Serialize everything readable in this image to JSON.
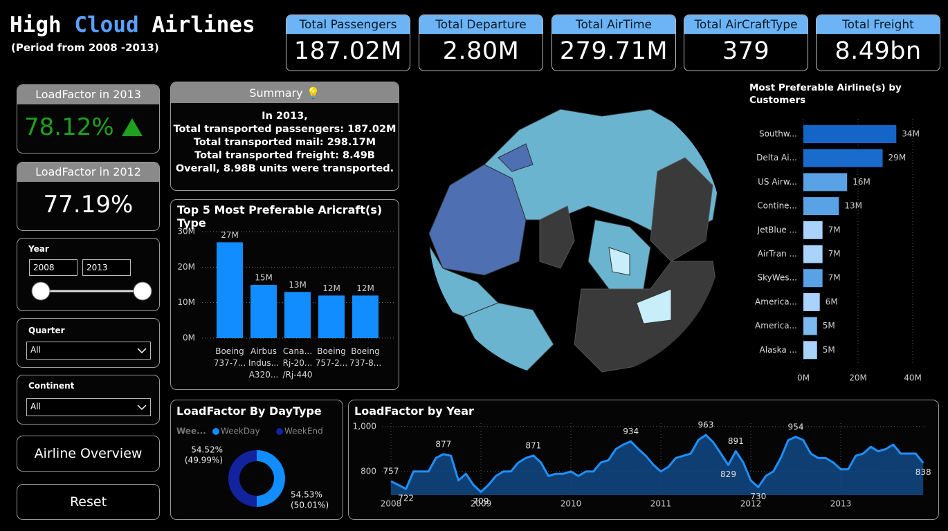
{
  "header": {
    "title_parts": [
      "High",
      "Cloud",
      "Airlines"
    ],
    "subtitle": "(Period from 2008 -2013)"
  },
  "kpis": [
    {
      "label": "Total Passengers",
      "value": "187.02M"
    },
    {
      "label": "Total Departure",
      "value": "2.80M"
    },
    {
      "label": "Total AirTime",
      "value": "279.71M"
    },
    {
      "label": "Total AirCraftType",
      "value": "379"
    },
    {
      "label": "Total Freight",
      "value": "8.49bn"
    }
  ],
  "load_factor_cards": [
    {
      "title": "LoadFactor in 2013",
      "value": "78.12%"
    },
    {
      "title": "LoadFactor in 2012",
      "value": "77.19%"
    }
  ],
  "summary": {
    "title": "Summary 💡",
    "lines": [
      "In 2013,",
      "Total transported passengers: 187.02M",
      "Total transported mail: 298.17M",
      "Total transported freight: 8.49B",
      "Overall, 8.98B units were transported."
    ]
  },
  "filters": {
    "year": {
      "label": "Year",
      "from": "2008",
      "to": "2013"
    },
    "quarter": {
      "label": "Quarter",
      "value": "All"
    },
    "continent": {
      "label": "Continent",
      "value": "All"
    }
  },
  "buttons": [
    "Airline Overview",
    "Reset"
  ],
  "chart_data": [
    {
      "type": "bar",
      "title": "Top 5 Most Preferable Aricraft(s) Type",
      "categories": [
        "Boeing\n737-7...",
        "Airbus\nIndus...\nA320...",
        "Cana...\nRj-20...\n/Rj-440",
        "Boeing\n757-2...",
        "Boeing\n737-8..."
      ],
      "values": [
        27000000,
        15000000,
        13000000,
        12000000,
        12000000
      ],
      "value_labels": [
        "27M",
        "15M",
        "13M",
        "12M",
        "12M"
      ],
      "color": "#118dff",
      "ylim": [
        0,
        30000000
      ],
      "yticks": [
        {
          "value": 0,
          "label": "0M"
        },
        {
          "value": 10000000,
          "label": "10M"
        },
        {
          "value": 20000000,
          "label": "20M"
        },
        {
          "value": 30000000,
          "label": "30M"
        }
      ],
      "grid": true
    },
    {
      "type": "hbar",
      "title": "Most Preferable Airline(s) by Customers",
      "categories": [
        "Southw...",
        "Delta Ai...",
        "US Airw...",
        "Contine...",
        "JetBlue ...",
        "AirTran ...",
        "SkyWes...",
        "America...",
        "America...",
        "Alaska ..."
      ],
      "values": [
        34000000,
        29000000,
        16000000,
        13000000,
        7000000,
        7000000,
        7000000,
        6000000,
        5000000,
        5000000
      ],
      "value_labels": [
        "34M",
        "29M",
        "16M",
        "13M",
        "7M",
        "7M",
        "7M",
        "6M",
        "5M",
        "5M"
      ],
      "colors": [
        "#1565c8",
        "#1a6ccc",
        "#5aa2e6",
        "#5aa2e6",
        "#a9d3fb",
        "#a9d3fb",
        "#5aa2e6",
        "#a9d3fb",
        "#7db8f0",
        "#a9d3fb"
      ],
      "xlim": [
        0,
        40000000
      ],
      "xticks": [
        {
          "value": 0,
          "label": "0M"
        },
        {
          "value": 20000000,
          "label": "20M"
        },
        {
          "value": 40000000,
          "label": "40M"
        }
      ],
      "grid": true
    },
    {
      "type": "donut",
      "title": "LoadFactor By DayType",
      "legend_title": "Wee...",
      "categories": [
        "WeekDay",
        "WeekEnd"
      ],
      "values": [
        50.01,
        49.99
      ],
      "value_labels": [
        "(50.01%)",
        "(49.99%)"
      ],
      "loadfactor_labels": [
        "54.53%",
        "54.52%"
      ],
      "colors": [
        "#118dff",
        "#12239e"
      ]
    },
    {
      "type": "line",
      "title": "LoadFactor by Year",
      "categories": [
        "2008",
        null,
        null,
        null,
        null,
        null,
        null,
        null,
        null,
        null,
        null,
        null,
        "2009",
        null,
        null,
        null,
        null,
        null,
        null,
        null,
        null,
        null,
        null,
        null,
        "2010",
        null,
        null,
        null,
        null,
        null,
        null,
        null,
        null,
        null,
        null,
        null,
        "2011",
        null,
        null,
        null,
        null,
        null,
        null,
        null,
        null,
        null,
        null,
        null,
        "2012",
        null,
        null,
        null,
        null,
        null,
        null,
        null,
        null,
        null,
        null,
        null,
        "2013",
        null,
        null,
        null,
        null,
        null,
        null,
        null,
        null,
        null,
        null,
        null
      ],
      "series": [
        {
          "name": "LoadFactor",
          "color": "#1e90ff",
          "values": [
            757,
            740,
            722,
            800,
            800,
            800,
            860,
            877,
            870,
            760,
            790,
            740,
            709,
            740,
            780,
            800,
            800,
            840,
            860,
            871,
            840,
            780,
            790,
            790,
            800,
            780,
            800,
            800,
            840,
            850,
            900,
            920,
            934,
            900,
            870,
            830,
            800,
            820,
            860,
            870,
            880,
            940,
            963,
            930,
            880,
            829,
            891,
            840,
            760,
            730,
            780,
            800,
            860,
            940,
            954,
            940,
            880,
            860,
            860,
            840,
            810,
            810,
            870,
            880,
            910,
            890,
            900,
            920,
            880,
            880,
            880,
            838
          ],
          "value_labels": [
            "757",
            null,
            "722",
            null,
            null,
            null,
            null,
            "877",
            null,
            null,
            null,
            null,
            "709",
            null,
            null,
            null,
            null,
            null,
            null,
            "871",
            null,
            null,
            null,
            null,
            null,
            null,
            null,
            null,
            null,
            null,
            null,
            null,
            "934",
            null,
            null,
            null,
            null,
            null,
            null,
            null,
            null,
            null,
            "963",
            null,
            null,
            "829",
            "891",
            null,
            null,
            "730",
            null,
            null,
            null,
            null,
            "954",
            null,
            null,
            null,
            null,
            null,
            null,
            null,
            null,
            null,
            null,
            null,
            null,
            null,
            null,
            null,
            null,
            "838"
          ]
        }
      ],
      "ylim": [
        695,
        1000
      ],
      "yticks": [
        800,
        {
          "value": 1000,
          "label": "1,000"
        }
      ],
      "grid": true
    }
  ]
}
